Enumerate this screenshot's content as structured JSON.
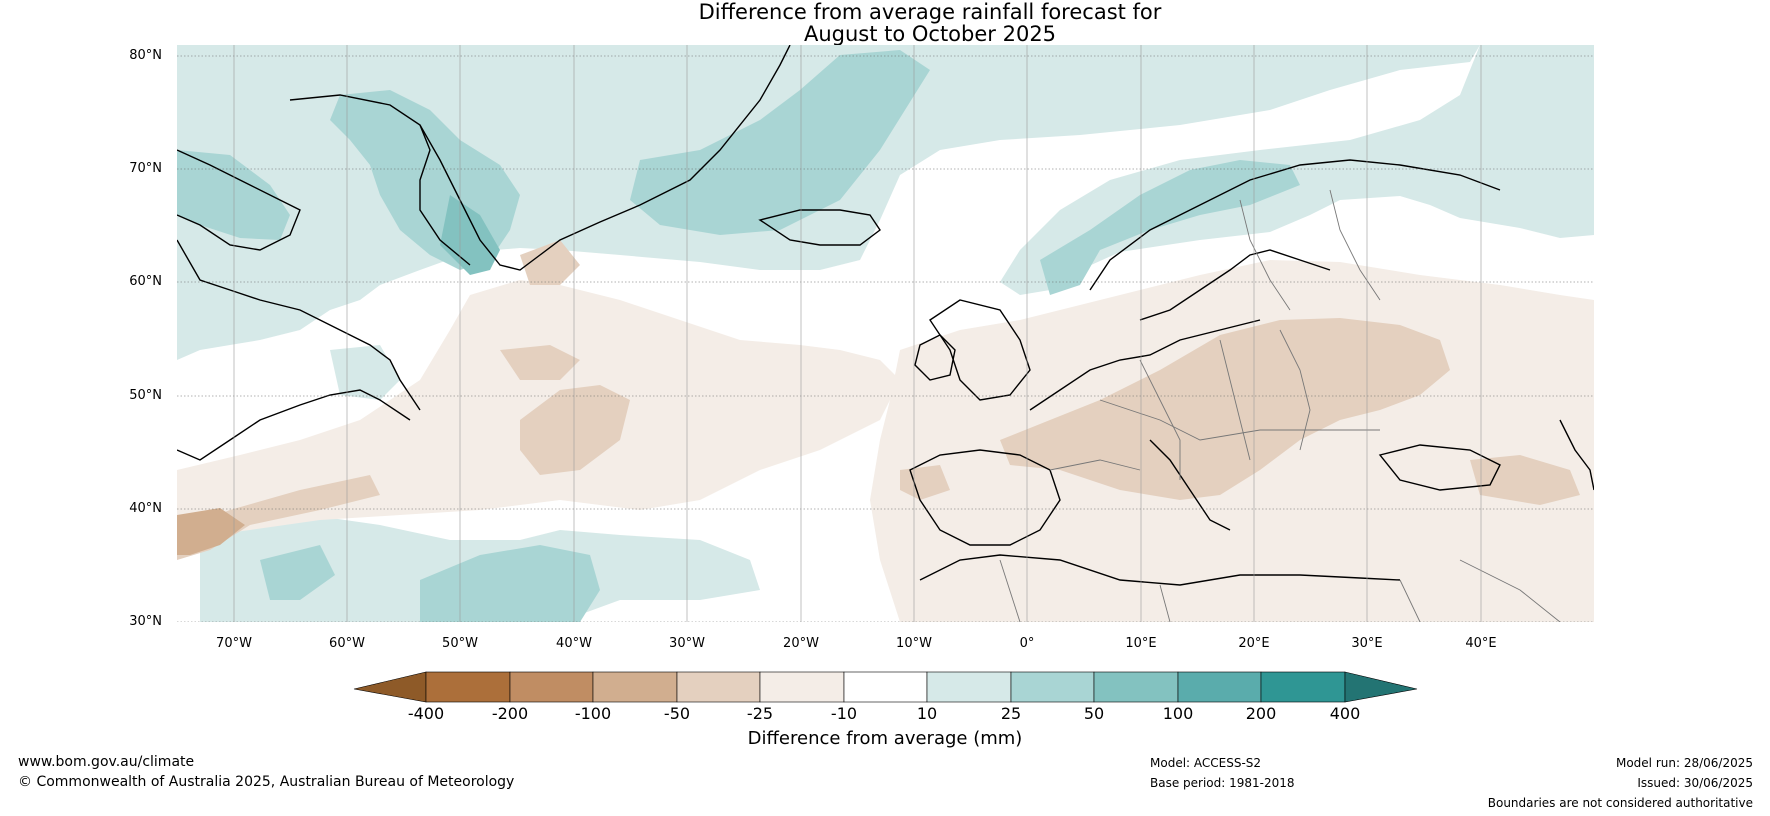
{
  "header": {
    "title_line1": "Difference from average rainfall forecast for",
    "title_line2": "August to October 2025"
  },
  "map": {
    "projection": "equirectangular",
    "lon_range": [
      -75,
      50
    ],
    "lat_range": [
      30,
      81
    ],
    "lat_labels": [
      "80°N",
      "70°N",
      "60°N",
      "50°N",
      "40°N",
      "30°N"
    ],
    "lon_labels": [
      "70°W",
      "60°W",
      "50°W",
      "40°W",
      "30°W",
      "20°W",
      "10°W",
      "0°",
      "10°E",
      "20°E",
      "30°E",
      "40°E"
    ],
    "region": "North Atlantic and Europe"
  },
  "colorbar": {
    "title": "Difference from average (mm)",
    "tick_labels": [
      "-400",
      "-200",
      "-100",
      "-50",
      "-25",
      "-10",
      "10",
      "25",
      "50",
      "100",
      "200",
      "400"
    ],
    "colors": [
      "#8e5a28",
      "#ac6f3a",
      "#c08d63",
      "#d1ae8f",
      "#e4d0bf",
      "#f4ede7",
      "#ffffff",
      "#d6e9e8",
      "#a9d5d4",
      "#83c2c0",
      "#5aacac",
      "#2f9694",
      "#237473"
    ]
  },
  "footer": {
    "url": "www.bom.gov.au/climate",
    "copyright": "© Commonwealth of Australia 2025, Australian Bureau of Meteorology",
    "model": "Model: ACCESS-S2",
    "base_period": "Base period: 1981-2018",
    "model_run": "Model run: 28/06/2025",
    "issued": "Issued: 30/06/2025",
    "disclaimer": "Boundaries are not considered authoritative"
  }
}
